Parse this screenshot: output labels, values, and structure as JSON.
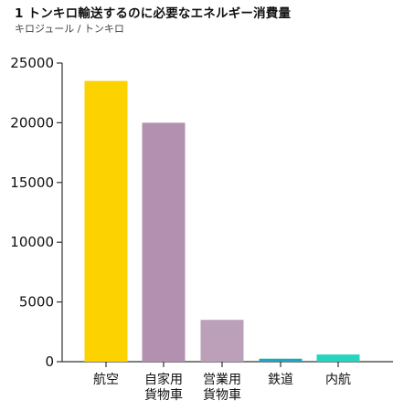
{
  "title": "1 トンキロ輸送するのに必要なエネルギー消費量",
  "subtitle": "キロジュール / トンキロ",
  "chart_data": {
    "type": "bar",
    "title": "1 トンキロ輸送するのに必要なエネルギー消費量",
    "subtitle": "キロジュール / トンキロ",
    "ylabel": "",
    "xlabel": "",
    "ylim": [
      0,
      25000
    ],
    "yticks": [
      0,
      5000,
      10000,
      15000,
      20000,
      25000
    ],
    "categories": [
      [
        "航空"
      ],
      [
        "自家用",
        "貨物車"
      ],
      [
        "営業用",
        "貨物車"
      ],
      [
        "鉄道"
      ],
      [
        "内航"
      ]
    ],
    "values": [
      23500,
      20000,
      3500,
      250,
      600
    ],
    "colors": [
      "#FCD200",
      "#B390B0",
      "#BCA0BA",
      "#1CA7BF",
      "#27D4C0"
    ],
    "grid": false,
    "legend": "none"
  }
}
